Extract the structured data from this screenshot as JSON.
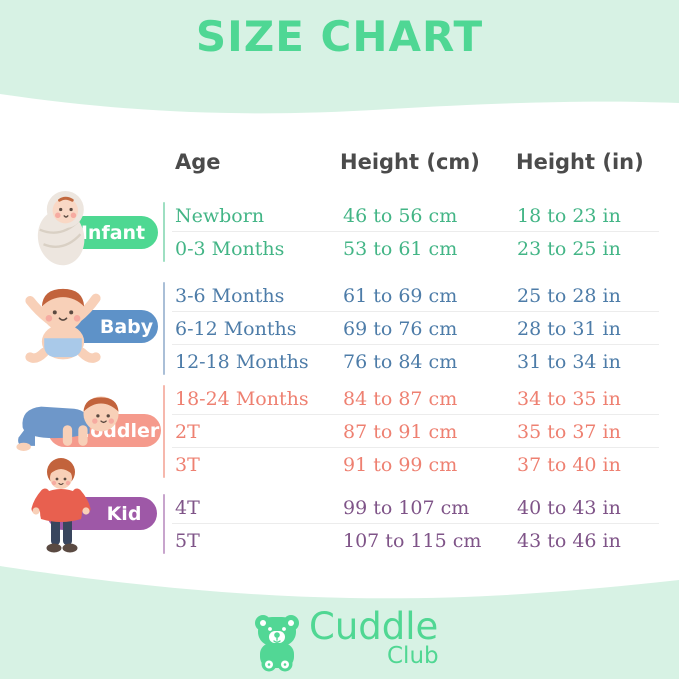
{
  "title": "SIZE CHART",
  "table": {
    "headers": [
      "Age",
      "Height (cm)",
      "Height (in)"
    ],
    "groups": [
      {
        "label": "Infant",
        "icon": "swaddled-infant-illustration",
        "pill_color": "#4ed892",
        "text_color": "#43b586",
        "line_color": "#9edfc2",
        "rows": [
          {
            "age": "Newborn",
            "height_cm": "46 to 56 cm",
            "height_in": "18 to 23 in"
          },
          {
            "age": "0-3 Months",
            "height_cm": "53 to 61 cm",
            "height_in": "23 to 25 in"
          }
        ]
      },
      {
        "label": "Baby",
        "icon": "baby-arms-up-illustration",
        "pill_color": "#5e92c8",
        "text_color": "#4d7ca8",
        "line_color": "#aabfd7",
        "rows": [
          {
            "age": "3-6 Months",
            "height_cm": "61 to 69 cm",
            "height_in": "25 to 28 in"
          },
          {
            "age": "6-12 Months",
            "height_cm": "69 to 76 cm",
            "height_in": "28 to 31 in"
          },
          {
            "age": "12-18 Months",
            "height_cm": "76 to 84 cm",
            "height_in": "31 to 34 in"
          }
        ]
      },
      {
        "label": "Toddler",
        "icon": "toddler-crawling-illustration",
        "pill_color": "#f59a8c",
        "text_color": "#ee8071",
        "line_color": "#f6b8ad",
        "rows": [
          {
            "age": "18-24 Months",
            "height_cm": "84 to 87 cm",
            "height_in": "34 to 35 in"
          },
          {
            "age": "2T",
            "height_cm": "87 to 91 cm",
            "height_in": "35 to 37 in"
          },
          {
            "age": "3T",
            "height_cm": "91 to 99 cm",
            "height_in": "37 to 40 in"
          }
        ]
      },
      {
        "label": "Kid",
        "icon": "kid-standing-illustration",
        "pill_color": "#9e58a7",
        "text_color": "#7f5488",
        "line_color": "#c8a5cd",
        "rows": [
          {
            "age": "4T",
            "height_cm": "99 to 107 cm",
            "height_in": "40 to 43 in"
          },
          {
            "age": "5T",
            "height_cm": "107 to 115 cm",
            "height_in": "43 to 46 in"
          }
        ]
      }
    ]
  },
  "brand": {
    "name": "Cuddle",
    "sub": "Club",
    "icon": "teddy-bear-icon",
    "color": "#50d793"
  },
  "colors": {
    "background": "#d7f2e4",
    "card": "#ffffff",
    "title": "#4fd794",
    "header_text": "#4b4b4b",
    "row_divider": "#ececec"
  }
}
